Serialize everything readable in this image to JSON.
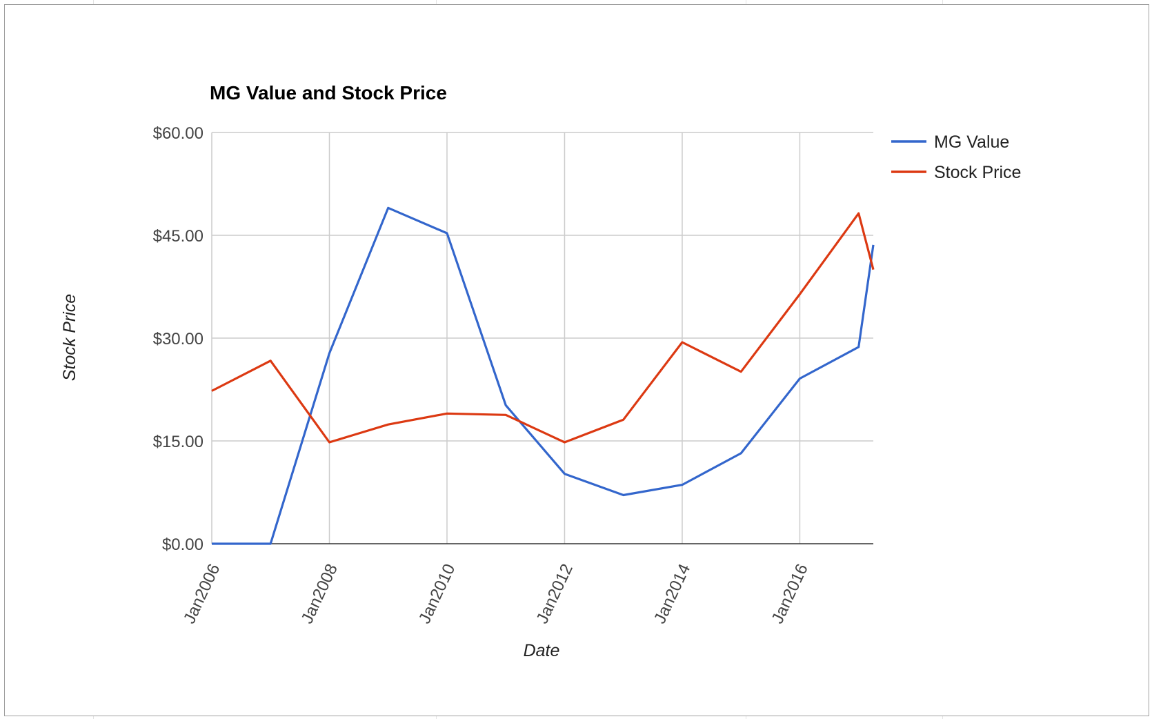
{
  "chart_data": {
    "type": "line",
    "title": "MG Value and Stock Price",
    "xlabel": "Date",
    "ylabel": "Stock Price",
    "x_tick_labels": [
      "Jan2006",
      "Jan2008",
      "Jan2010",
      "Jan2012",
      "Jan2014",
      "Jan2016"
    ],
    "y_tick_labels": [
      "$0.00",
      "$15.00",
      "$30.00",
      "$45.00",
      "$60.00"
    ],
    "y_ticks": [
      0,
      15,
      30,
      45,
      60
    ],
    "ylim": [
      0,
      60
    ],
    "xlim": [
      "2006-01",
      "2017-04"
    ],
    "grid": true,
    "legend_position": "right",
    "x": [
      "2006-01",
      "2007-01",
      "2008-01",
      "2009-01",
      "2010-01",
      "2011-01",
      "2012-01",
      "2013-01",
      "2014-01",
      "2015-01",
      "2016-01",
      "2017-01",
      "2017-04"
    ],
    "series": [
      {
        "name": "MG Value",
        "color": "#3366cc",
        "values": [
          0,
          0,
          27.8,
          49.0,
          45.3,
          20.2,
          10.2,
          7.1,
          8.6,
          13.2,
          24.1,
          28.7,
          43.6
        ]
      },
      {
        "name": "Stock Price",
        "color": "#dc3912",
        "values": [
          22.3,
          26.7,
          14.8,
          17.4,
          19.0,
          18.8,
          14.8,
          18.1,
          29.4,
          25.1,
          36.4,
          48.2,
          40.0
        ]
      }
    ]
  }
}
